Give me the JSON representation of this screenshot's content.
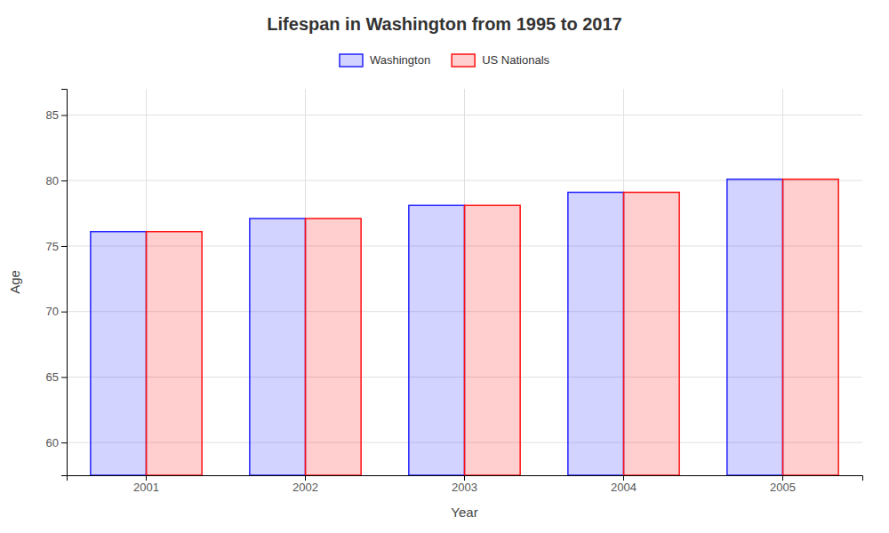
{
  "chart_data": {
    "type": "bar",
    "title": "Lifespan in Washington from 1995 to 2017",
    "xlabel": "Year",
    "ylabel": "Age",
    "categories": [
      "2001",
      "2002",
      "2003",
      "2004",
      "2005"
    ],
    "series": [
      {
        "name": "Washington",
        "color": "#2222ff",
        "values": [
          76.1,
          77.1,
          78.1,
          79.1,
          80.1
        ]
      },
      {
        "name": "US Nationals",
        "color": "#ff1111",
        "values": [
          76.1,
          77.1,
          78.1,
          79.1,
          80.1
        ]
      }
    ],
    "ylim": [
      57.5,
      87
    ],
    "yticks": [
      60,
      65,
      70,
      75,
      80,
      85
    ],
    "grid": true,
    "legend": "top"
  }
}
